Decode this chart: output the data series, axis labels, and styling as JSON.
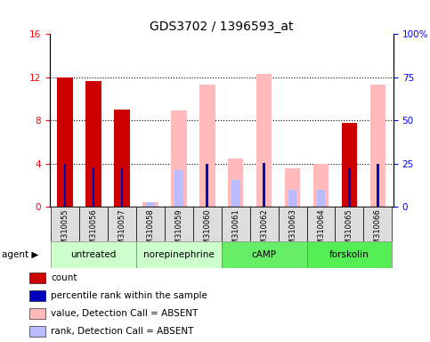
{
  "title": "GDS3702 / 1396593_at",
  "samples": [
    "GSM310055",
    "GSM310056",
    "GSM310057",
    "GSM310058",
    "GSM310059",
    "GSM310060",
    "GSM310061",
    "GSM310062",
    "GSM310063",
    "GSM310064",
    "GSM310065",
    "GSM310066"
  ],
  "count_values": [
    12.0,
    11.7,
    9.0,
    null,
    null,
    null,
    null,
    null,
    null,
    null,
    7.8,
    null
  ],
  "percentile_values": [
    25.0,
    23.0,
    22.5,
    null,
    null,
    25.0,
    null,
    25.5,
    null,
    null,
    22.5,
    25.0
  ],
  "absent_value_values": [
    null,
    null,
    null,
    2.5,
    56.0,
    71.0,
    28.0,
    77.0,
    22.5,
    25.0,
    null,
    71.0
  ],
  "absent_rank_values": [
    null,
    null,
    null,
    3.0,
    21.5,
    null,
    15.5,
    null,
    10.0,
    10.0,
    null,
    null
  ],
  "agents": [
    {
      "label": "untreated",
      "start": 0,
      "end": 2,
      "color": "#ccffcc"
    },
    {
      "label": "norepinephrine",
      "start": 3,
      "end": 5,
      "color": "#ccffcc"
    },
    {
      "label": "cAMP",
      "start": 6,
      "end": 8,
      "color": "#66ee66"
    },
    {
      "label": "forskolin",
      "start": 9,
      "end": 11,
      "color": "#55ee55"
    }
  ],
  "ylim_left": [
    0,
    16
  ],
  "ylim_right": [
    0,
    100
  ],
  "yticks_left": [
    0,
    4,
    8,
    12,
    16
  ],
  "yticks_right": [
    0,
    25,
    50,
    75,
    100
  ],
  "yticklabels_right": [
    "0",
    "25",
    "50",
    "75",
    "100%"
  ],
  "color_count": "#cc0000",
  "color_percentile": "#0000bb",
  "color_absent_value": "#ffbbbb",
  "color_absent_rank": "#bbbbff",
  "legend_items": [
    {
      "color": "#cc0000",
      "label": "count"
    },
    {
      "color": "#0000bb",
      "label": "percentile rank within the sample"
    },
    {
      "color": "#ffbbbb",
      "label": "value, Detection Call = ABSENT"
    },
    {
      "color": "#bbbbff",
      "label": "rank, Detection Call = ABSENT"
    }
  ]
}
